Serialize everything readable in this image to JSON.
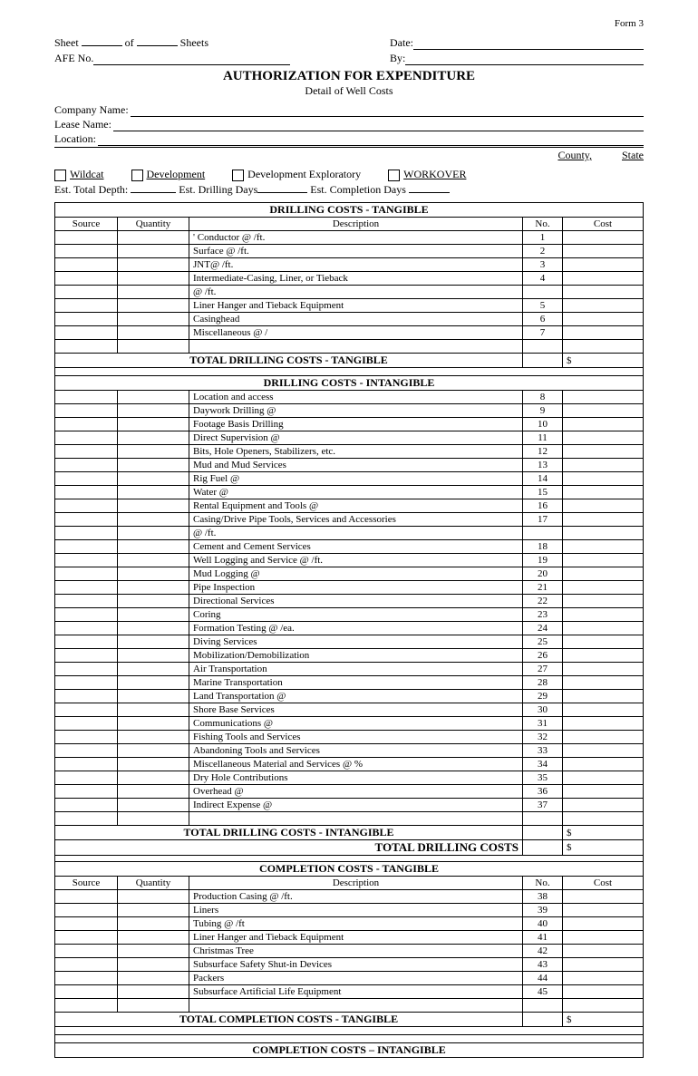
{
  "form_number": "Form 3",
  "header": {
    "sheet_label": "Sheet",
    "of_label": "of",
    "sheets_label": "Sheets",
    "date_label": "Date:",
    "afe_label": "AFE No.",
    "by_label": "By:"
  },
  "title": "AUTHORIZATION FOR EXPENDITURE",
  "subtitle": "Detail of Well Costs",
  "fields": {
    "company": "Company Name:",
    "lease": "Lease Name:",
    "location": "Location:",
    "county": "County,",
    "state": "State"
  },
  "checkboxes": {
    "wildcat": "Wildcat",
    "development": "Development",
    "dev_exploratory": "Development Exploratory",
    "workover": "WORKOVER"
  },
  "estimates": {
    "depth": "Est. Total Depth:",
    "drilling_days": "Est. Drilling Days",
    "completion_days": "Est. Completion Days"
  },
  "columns": {
    "source": "Source",
    "quantity": "Quantity",
    "description": "Description",
    "no": "No.",
    "cost": "Cost"
  },
  "sections": {
    "drilling_tangible": {
      "title": "DRILLING COSTS - TANGIBLE",
      "rows": [
        {
          "desc": "' Conductor @                    /ft.",
          "no": "1"
        },
        {
          "desc": "Surface @                    /ft.",
          "no": "2"
        },
        {
          "desc": "JNT@                /ft.",
          "no": "3"
        },
        {
          "desc": "Intermediate-Casing, Liner, or  Tieback",
          "no": "4"
        },
        {
          "desc": "                @                    /ft.",
          "no": ""
        },
        {
          "desc": "Liner Hanger and Tieback Equipment",
          "no": "5"
        },
        {
          "desc": "Casinghead",
          "no": "6"
        },
        {
          "desc": "Miscellaneous @                    /",
          "no": "7"
        }
      ],
      "total": "TOTAL DRILLING COSTS - TANGIBLE"
    },
    "drilling_intangible": {
      "title": "DRILLING COSTS - INTANGIBLE",
      "rows": [
        {
          "desc": "Location and access",
          "no": "8"
        },
        {
          "desc": "Daywork Drilling            @",
          "no": "9"
        },
        {
          "desc": "Footage Basis Drilling",
          "no": "10"
        },
        {
          "desc": "Direct Supervision          @",
          "no": "11"
        },
        {
          "desc": "Bits, Hole Openers, Stabilizers, etc.",
          "no": "12"
        },
        {
          "desc": "Mud and Mud Services",
          "no": "13"
        },
        {
          "desc": "Rig Fuel            @",
          "no": "14"
        },
        {
          "desc": "Water                @",
          "no": "15"
        },
        {
          "desc": "Rental Equipment and Tools          @",
          "no": "16"
        },
        {
          "desc": "Casing/Drive Pipe Tools, Services and Accessories",
          "no": "17"
        },
        {
          "desc": "                @                /ft.",
          "no": ""
        },
        {
          "desc": "Cement and Cement Services",
          "no": "18"
        },
        {
          "desc": "Well Logging and Service        @                /ft.",
          "no": "19"
        },
        {
          "desc": "Mud Logging          @",
          "no": "20"
        },
        {
          "desc": "Pipe Inspection",
          "no": "21"
        },
        {
          "desc": "Directional Services",
          "no": "22"
        },
        {
          "desc": "Coring",
          "no": "23"
        },
        {
          "desc": "Formation Testing          @                /ea.",
          "no": "24"
        },
        {
          "desc": "Diving Services",
          "no": "25"
        },
        {
          "desc": "Mobilization/Demobilization",
          "no": "26"
        },
        {
          "desc": "Air Transportation",
          "no": "27"
        },
        {
          "desc": "Marine Transportation",
          "no": "28"
        },
        {
          "desc": "Land Transportation          @",
          "no": "29"
        },
        {
          "desc": "Shore Base Services",
          "no": "30"
        },
        {
          "desc": "Communications          @",
          "no": "31"
        },
        {
          "desc": "Fishing Tools and Services",
          "no": "32"
        },
        {
          "desc": "Abandoning Tools and Services",
          "no": "33"
        },
        {
          "desc": "Miscellaneous Material and Services     @            %",
          "no": "34"
        },
        {
          "desc": "Dry Hole Contributions",
          "no": "35"
        },
        {
          "desc": "Overhead            @",
          "no": "36"
        },
        {
          "desc": "Indirect Expense          @",
          "no": "37"
        }
      ],
      "total": "TOTAL DRILLING COSTS - INTANGIBLE"
    },
    "grand_total_drilling": "TOTAL DRILLING COSTS",
    "completion_tangible": {
      "title": "COMPLETION COSTS - TANGIBLE",
      "rows": [
        {
          "desc": "Production Casing          @            /ft.",
          "no": "38"
        },
        {
          "desc": "Liners",
          "no": "39"
        },
        {
          "desc": "Tubing          @                /ft",
          "no": "40"
        },
        {
          "desc": "Liner Hanger and Tieback Equipment",
          "no": "41"
        },
        {
          "desc": "Christmas Tree",
          "no": "42"
        },
        {
          "desc": "Subsurface Safety Shut-in Devices",
          "no": "43"
        },
        {
          "desc": "Packers",
          "no": "44"
        },
        {
          "desc": "Subsurface Artificial Life Equipment",
          "no": "45"
        }
      ],
      "total": "TOTAL COMPLETION COSTS - TANGIBLE"
    },
    "completion_intangible": {
      "title": "COMPLETION COSTS – INTANGIBLE"
    }
  },
  "dollar": "$"
}
